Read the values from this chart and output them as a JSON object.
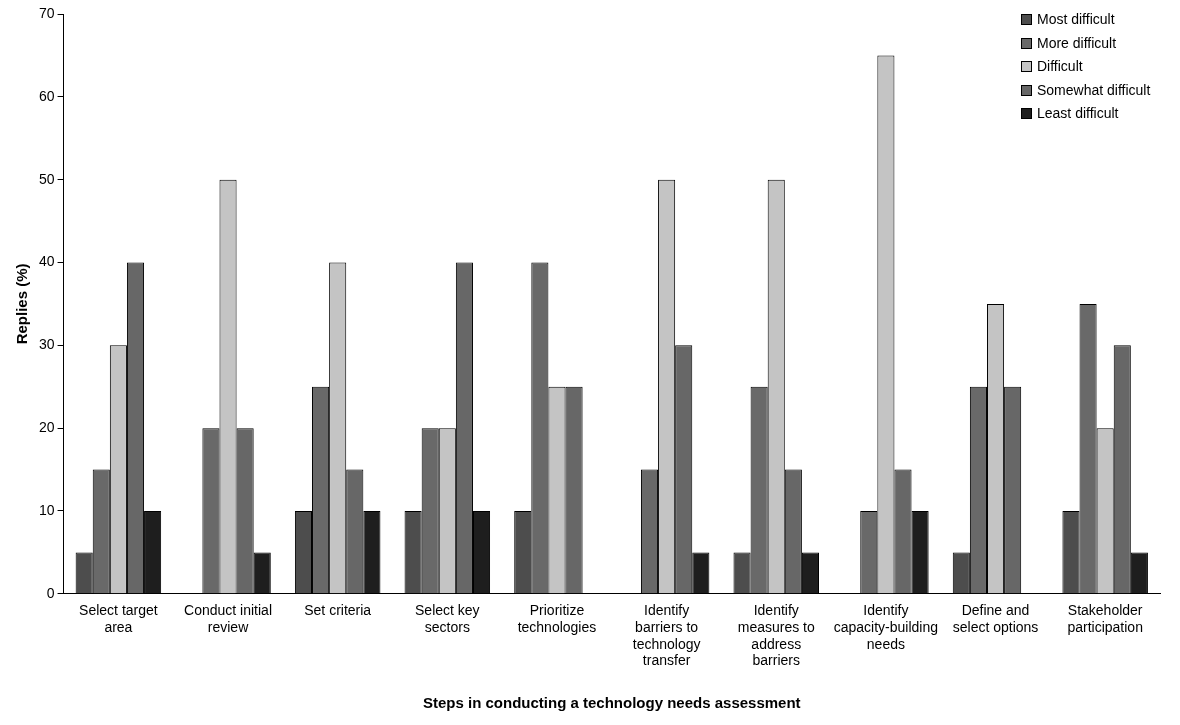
{
  "chart_data": {
    "type": "bar",
    "xlabel": "Steps in conducting a technology needs assessment",
    "ylabel": "Replies (%)",
    "categories": [
      "Select target area",
      "Conduct initial review",
      "Set criteria",
      "Select key sectors",
      "Prioritize technologies",
      "Identify barriers to technology transfer",
      "Identify measures to address barriers",
      "Identify capacity-building needs",
      "Define and select options",
      "Stakeholder participation"
    ],
    "series": [
      {
        "name": "Most difficult",
        "color": "#4d4d4d",
        "values": [
          5,
          0,
          10,
          10,
          10,
          0,
          5,
          0,
          5,
          10
        ]
      },
      {
        "name": "More difficult",
        "color": "#696969",
        "values": [
          15,
          20,
          25,
          20,
          40,
          15,
          25,
          10,
          25,
          35
        ]
      },
      {
        "name": "Difficult",
        "color": "#c4c4c4",
        "values": [
          30,
          50,
          40,
          20,
          25,
          50,
          50,
          65,
          35,
          20
        ]
      },
      {
        "name": "Somewhat difficult",
        "color": "#676767",
        "values": [
          40,
          20,
          15,
          40,
          25,
          30,
          15,
          15,
          25,
          30
        ]
      },
      {
        "name": "Least difficult",
        "color": "#1e1e1e",
        "values": [
          10,
          5,
          10,
          10,
          0,
          5,
          5,
          10,
          0,
          5
        ]
      }
    ],
    "ylim": [
      0,
      70
    ],
    "yticks": [
      0,
      10,
      20,
      30,
      40,
      50,
      60,
      70
    ],
    "grid": false,
    "legend": "top right"
  }
}
